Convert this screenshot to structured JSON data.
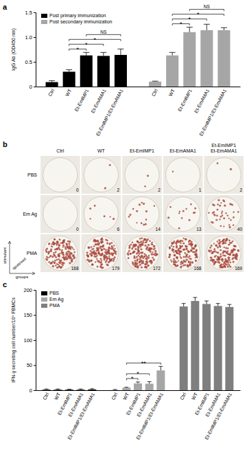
{
  "chart_data": [
    {
      "type": "bar",
      "panel_label": "a",
      "y_label": "IgG Ab (OD450 nm)",
      "categories": [
        "Ctrl",
        "WT",
        "Et-EmIMP1",
        "Et-EmAMA1",
        "Et-EmIMP1/Et-EmAMA1"
      ],
      "series": [
        {
          "name": "Post primary immunization",
          "color": "#000000",
          "values": [
            0.09,
            0.3,
            0.63,
            0.62,
            0.64
          ],
          "errors": [
            0.03,
            0.04,
            0.06,
            0.07,
            0.12
          ]
        },
        {
          "name": "Post secondary immunization",
          "color": "#a6a6a6",
          "values": [
            0.1,
            0.63,
            1.1,
            1.14,
            1.14
          ],
          "errors": [
            0.01,
            0.06,
            0.1,
            0.12,
            0.05
          ]
        }
      ],
      "ylim": [
        0,
        1.5
      ],
      "yticks": [
        0,
        0.5,
        {
          "value": 1,
          "label": "1.0"
        },
        1.5
      ],
      "legend": "top-left",
      "comparisons": [
        {
          "series": 0,
          "from": 1,
          "to": 2,
          "label": "*"
        },
        {
          "series": 0,
          "from": 1,
          "to": 3,
          "label": "*"
        },
        {
          "series": 0,
          "from": 1,
          "to": 4,
          "label": "*"
        },
        {
          "series": 0,
          "from": 2,
          "to": 4,
          "label": "NS"
        },
        {
          "series": 1,
          "from": 1,
          "to": 2,
          "label": "*"
        },
        {
          "series": 1,
          "from": 1,
          "to": 3,
          "label": "*"
        },
        {
          "series": 1,
          "from": 1,
          "to": 4,
          "label": "*"
        },
        {
          "series": 1,
          "from": 2,
          "to": 4,
          "label": "NS"
        }
      ]
    },
    {
      "type": "well_grid",
      "panel_label": "b",
      "columns": [
        "Ctrl",
        "WT",
        "Et-EmIMP1",
        "Et-EmAMA1",
        "Et-EmIMP1\nEt-EmAMA1"
      ],
      "rows": [
        "PBS",
        "Em Ag",
        "PMA"
      ],
      "values": [
        [
          0,
          2,
          2,
          1,
          2
        ],
        [
          0,
          6,
          14,
          13,
          40
        ],
        [
          168,
          179,
          172,
          168,
          169
        ]
      ],
      "row_axis_label": "stimulant",
      "column_axis_label": "groups",
      "value_label": "spots/well",
      "color": "#a8473b"
    },
    {
      "type": "bar",
      "panel_label": "c",
      "y_label": "IFN-γ secreting cell number/10⁶ PBMCs",
      "categories": [
        "Ctrl",
        "WT",
        "Et-EmIMP1",
        "Et-EmAMA1",
        "Et-EmIMP1/Et-EmAMA1"
      ],
      "series": [
        {
          "name": "PBS",
          "color": "#000000",
          "values": [
            1,
            1,
            1,
            1,
            1.5
          ],
          "errors": [
            1.5,
            1.5,
            1,
            1.5,
            1.5
          ]
        },
        {
          "name": "Em Ag",
          "color": "#a6a6a6",
          "values": [
            0.5,
            5,
            13.5,
            13,
            39.5
          ],
          "errors": [
            1,
            1,
            3,
            4,
            8
          ]
        },
        {
          "name": "PMA",
          "color": "#7f7f7f",
          "values": [
            167,
            178,
            172,
            168,
            166
          ],
          "errors": [
            6,
            7,
            6,
            5,
            5
          ]
        }
      ],
      "ylim": [
        0,
        200
      ],
      "yticks": [
        0,
        50,
        100,
        150,
        200
      ],
      "legend": "top-left",
      "comparisons": [
        {
          "series": 1,
          "from": 1,
          "to": 2,
          "label": "*"
        },
        {
          "series": 1,
          "from": 1,
          "to": 3,
          "label": "*"
        },
        {
          "series": 1,
          "from": 1,
          "to": 4,
          "label": "**"
        }
      ]
    }
  ]
}
